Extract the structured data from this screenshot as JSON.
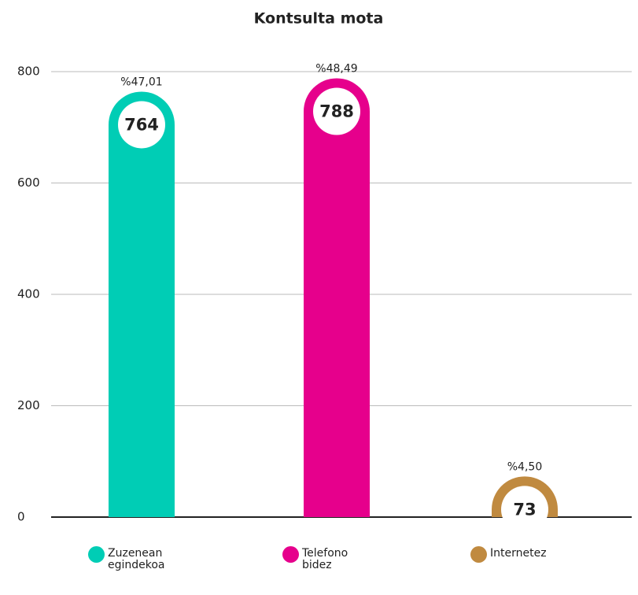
{
  "chart_data": {
    "type": "bar",
    "title": "Kontsulta mota",
    "categories": [
      "Zuzenean egindekoa",
      "Telefono bidez",
      "Internetez"
    ],
    "values": [
      764,
      788,
      73
    ],
    "share_values": [
      47.01,
      48.49,
      4.5
    ],
    "share_labels": [
      "%47,01",
      "%48,49",
      "%4,50"
    ],
    "colors": [
      "#00cdb5",
      "#e6008c",
      "#c08a40"
    ],
    "ylim": [
      0,
      800
    ],
    "yticks": [
      0,
      200,
      400,
      600,
      800
    ],
    "grid": true
  }
}
